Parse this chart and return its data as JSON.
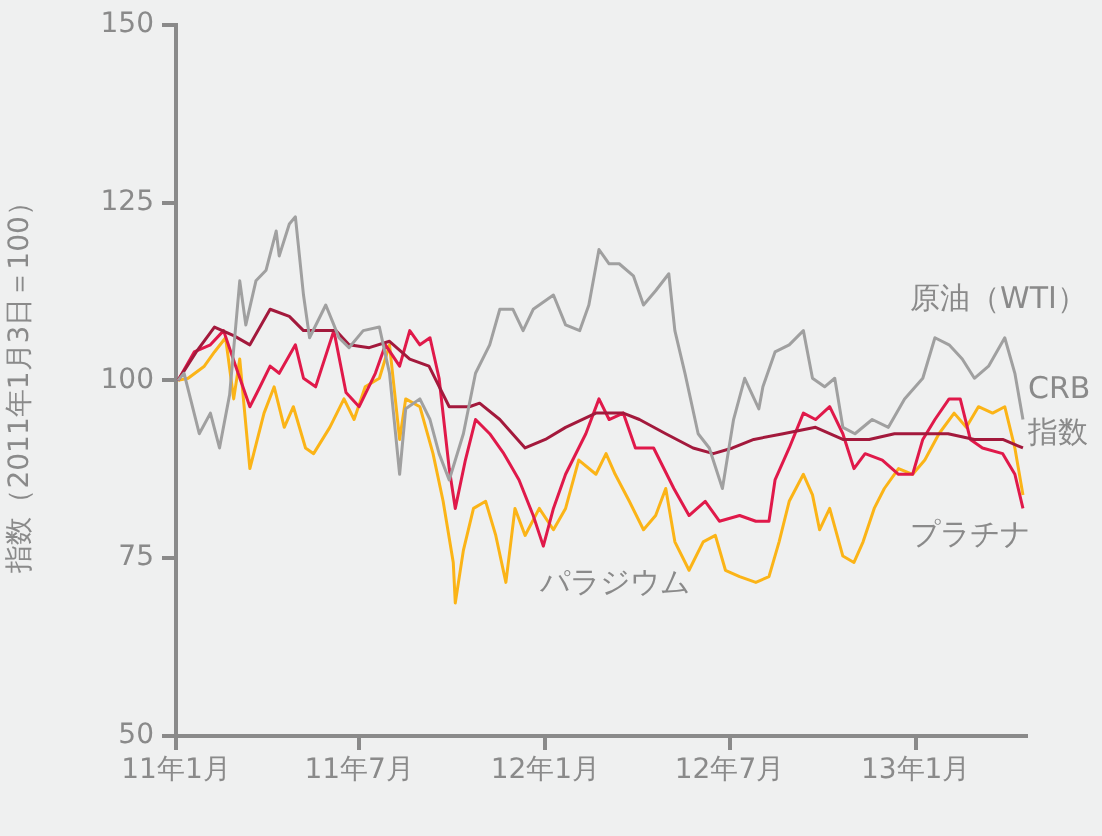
{
  "chart_data": {
    "type": "line",
    "ylabel": "指数（2011年1月3日＝100）",
    "ylim": [
      50,
      150
    ],
    "yticks": [
      50,
      75,
      100,
      125,
      150
    ],
    "xlim": [
      "2011-01-01",
      "2013-04-20"
    ],
    "xticks": [
      {
        "value": "2011-01",
        "label": "11年1月"
      },
      {
        "value": "2011-07",
        "label": "11年7月"
      },
      {
        "value": "2012-01",
        "label": "12年1月"
      },
      {
        "value": "2012-07",
        "label": "12年7月"
      },
      {
        "value": "2013-01",
        "label": "13年1月"
      }
    ],
    "grid": false,
    "legend": false,
    "marker": "none",
    "series": [
      {
        "name": "原油（WTI）",
        "color": "#a0a0a0",
        "x": [
          "2011-01-03",
          "2011-01-09",
          "2011-01-24",
          "2011-02-04",
          "2011-02-13",
          "2011-02-23",
          "2011-03-05",
          "2011-03-11",
          "2011-03-21",
          "2011-03-31",
          "2011-04-10",
          "2011-04-13",
          "2011-04-23",
          "2011-04-29",
          "2011-05-07",
          "2011-05-13",
          "2011-05-29",
          "2011-06-06",
          "2011-06-11",
          "2011-06-21",
          "2011-07-05",
          "2011-07-21",
          "2011-07-31",
          "2011-08-10",
          "2011-08-16",
          "2011-08-30",
          "2011-09-09",
          "2011-09-18",
          "2011-09-28",
          "2011-10-12",
          "2011-10-24",
          "2011-11-07",
          "2011-11-17",
          "2011-11-30",
          "2011-12-10",
          "2011-12-20",
          "2012-01-09",
          "2012-01-21",
          "2012-02-04",
          "2012-02-13",
          "2012-02-23",
          "2012-03-04",
          "2012-03-14",
          "2012-03-28",
          "2012-04-07",
          "2012-04-19",
          "2012-05-02",
          "2012-05-08",
          "2012-05-18",
          "2012-05-31",
          "2012-06-11",
          "2012-06-24",
          "2012-07-05",
          "2012-07-16",
          "2012-07-30",
          "2012-08-03",
          "2012-08-15",
          "2012-08-29",
          "2012-09-12",
          "2012-09-21",
          "2012-10-03",
          "2012-10-13",
          "2012-10-21",
          "2012-11-02",
          "2012-11-19",
          "2012-12-05",
          "2012-12-21",
          "2013-01-08",
          "2013-01-20",
          "2013-02-03",
          "2013-02-16",
          "2013-02-28",
          "2013-03-14",
          "2013-03-30",
          "2013-04-09",
          "2013-04-17"
        ],
        "values": [
          100,
          101,
          92.5,
          95.4,
          90.5,
          98,
          114,
          107.8,
          114,
          115.5,
          121,
          117.5,
          122,
          123,
          112,
          106,
          110.6,
          107.8,
          106,
          104.6,
          107,
          107.5,
          101,
          86.8,
          96,
          97.4,
          94.5,
          89.7,
          86,
          92.5,
          101,
          105,
          110,
          110,
          107,
          110,
          112,
          107.8,
          107,
          110.6,
          118.4,
          116.4,
          116.4,
          114.7,
          110.6,
          112.6,
          115,
          107,
          101,
          92.5,
          90.5,
          84.8,
          94.5,
          100.3,
          96,
          99.1,
          104,
          105,
          107,
          100.3,
          99.1,
          100.3,
          93.4,
          92.5,
          94.5,
          93.4,
          97.4,
          100.3,
          106,
          105,
          103,
          100.3,
          102,
          106,
          101,
          94.5
        ]
      },
      {
        "name": "CRB指数",
        "color": "#a3193c",
        "x": [
          "2011-01-03",
          "2011-01-21",
          "2011-02-08",
          "2011-02-27",
          "2011-03-15",
          "2011-04-04",
          "2011-04-23",
          "2011-05-07",
          "2011-05-27",
          "2011-06-08",
          "2011-06-21",
          "2011-07-11",
          "2011-07-31",
          "2011-08-20",
          "2011-09-08",
          "2011-09-28",
          "2011-10-18",
          "2011-10-28",
          "2011-11-17",
          "2011-12-12",
          "2012-01-01",
          "2012-01-21",
          "2012-02-20",
          "2012-03-18",
          "2012-04-03",
          "2012-04-29",
          "2012-05-26",
          "2012-06-15",
          "2012-07-04",
          "2012-07-25",
          "2012-08-23",
          "2012-09-24",
          "2012-10-21",
          "2012-11-16",
          "2012-12-11",
          "2013-01-08",
          "2013-02-02",
          "2013-02-28",
          "2013-03-28",
          "2013-04-17"
        ],
        "values": [
          100,
          104,
          107.5,
          106.3,
          105,
          110,
          109,
          107,
          107,
          107,
          105,
          104.6,
          105.5,
          103,
          102,
          96.3,
          96.3,
          96.8,
          94.5,
          90.5,
          91.7,
          93.4,
          95.4,
          95.4,
          94.5,
          92.5,
          90.5,
          89.7,
          90.5,
          91.7,
          92.5,
          93.4,
          91.7,
          91.7,
          92.5,
          92.5,
          92.5,
          91.7,
          91.7,
          90.5
        ]
      },
      {
        "name": "プラチナ",
        "color": "#e0194a",
        "x": [
          "2011-01-03",
          "2011-01-19",
          "2011-02-04",
          "2011-02-17",
          "2011-03-01",
          "2011-03-15",
          "2011-03-25",
          "2011-04-04",
          "2011-04-13",
          "2011-04-29",
          "2011-05-07",
          "2011-05-19",
          "2011-06-06",
          "2011-06-18",
          "2011-07-01",
          "2011-07-17",
          "2011-07-27",
          "2011-08-10",
          "2011-08-20",
          "2011-08-30",
          "2011-09-09",
          "2011-09-18",
          "2011-09-28",
          "2011-10-04",
          "2011-10-14",
          "2011-10-24",
          "2011-11-07",
          "2011-11-21",
          "2011-12-06",
          "2011-12-20",
          "2011-12-30",
          "2012-01-09",
          "2012-01-21",
          "2012-02-10",
          "2012-02-23",
          "2012-03-04",
          "2012-03-18",
          "2012-03-30",
          "2012-04-17",
          "2012-05-07",
          "2012-05-22",
          "2012-06-07",
          "2012-06-21",
          "2012-07-11",
          "2012-07-27",
          "2012-08-09",
          "2012-08-15",
          "2012-08-29",
          "2012-09-12",
          "2012-09-24",
          "2012-10-08",
          "2012-10-21",
          "2012-11-01",
          "2012-11-12",
          "2012-11-29",
          "2012-12-15",
          "2012-12-29",
          "2013-01-08",
          "2013-01-20",
          "2013-02-03",
          "2013-02-14",
          "2013-02-24",
          "2013-03-08",
          "2013-03-28",
          "2013-04-09",
          "2013-04-17"
        ],
        "values": [
          100,
          104,
          105,
          107,
          102,
          96.3,
          99.1,
          102,
          101,
          105,
          100.3,
          99.1,
          107,
          98.3,
          96.3,
          101,
          105,
          102,
          107,
          105,
          106,
          100.3,
          87.6,
          82,
          88.8,
          94.5,
          92.5,
          89.7,
          86,
          81,
          76.7,
          82,
          86.8,
          92.5,
          97.4,
          94.5,
          95.4,
          90.5,
          90.5,
          84.8,
          81,
          83,
          80.2,
          81,
          80.2,
          80.2,
          86,
          90.5,
          95.4,
          94.5,
          96.3,
          92.5,
          87.6,
          89.7,
          88.8,
          86.8,
          86.8,
          91.7,
          94.5,
          97.4,
          97.4,
          91.7,
          90.5,
          89.7,
          86.8,
          82
        ]
      },
      {
        "name": "パラジウム",
        "color": "#fbb417",
        "x": [
          "2011-01-03",
          "2011-01-13",
          "2011-01-29",
          "2011-02-08",
          "2011-02-19",
          "2011-02-27",
          "2011-03-05",
          "2011-03-15",
          "2011-03-29",
          "2011-04-08",
          "2011-04-18",
          "2011-04-27",
          "2011-05-09",
          "2011-05-17",
          "2011-06-02",
          "2011-06-16",
          "2011-06-26",
          "2011-07-07",
          "2011-07-21",
          "2011-07-31",
          "2011-08-10",
          "2011-08-16",
          "2011-08-30",
          "2011-09-12",
          "2011-09-22",
          "2011-10-02",
          "2011-10-04",
          "2011-10-12",
          "2011-10-22",
          "2011-11-03",
          "2011-11-13",
          "2011-11-23",
          "2011-12-02",
          "2011-12-12",
          "2011-12-26",
          "2012-01-09",
          "2012-01-21",
          "2012-02-03",
          "2012-02-20",
          "2012-03-01",
          "2012-03-10",
          "2012-03-24",
          "2012-04-07",
          "2012-04-19",
          "2012-04-29",
          "2012-05-08",
          "2012-05-22",
          "2012-06-05",
          "2012-06-17",
          "2012-06-27",
          "2012-07-11",
          "2012-07-27",
          "2012-08-09",
          "2012-08-19",
          "2012-08-29",
          "2012-09-12",
          "2012-09-21",
          "2012-09-28",
          "2012-10-08",
          "2012-10-21",
          "2012-11-01",
          "2012-11-10",
          "2012-11-21",
          "2012-12-01",
          "2012-12-15",
          "2012-12-29",
          "2013-01-10",
          "2013-01-24",
          "2013-02-08",
          "2013-02-20",
          "2013-03-04",
          "2013-03-18",
          "2013-03-30",
          "2013-04-09",
          "2013-04-17"
        ],
        "values": [
          100,
          100.3,
          102,
          104,
          106,
          97.4,
          103,
          87.6,
          95.4,
          99.1,
          93.4,
          96.3,
          90.5,
          89.7,
          93.4,
          97.4,
          94.5,
          99.1,
          100.3,
          105,
          91.7,
          97.4,
          96.3,
          89.7,
          83,
          74.4,
          68.7,
          76.1,
          82,
          83,
          78.2,
          71.6,
          82,
          78.2,
          82,
          79,
          82,
          88.8,
          86.8,
          89.7,
          86.8,
          83,
          79,
          81,
          84.8,
          77.3,
          73.3,
          77.3,
          78.2,
          73.3,
          72.4,
          71.6,
          72.4,
          77.3,
          83,
          86.8,
          83.9,
          79,
          82,
          75.3,
          74.4,
          77.3,
          82,
          84.8,
          87.6,
          86.8,
          88.8,
          92.5,
          95.4,
          93.4,
          96.3,
          95.4,
          96.3,
          90.5,
          83.9
        ]
      }
    ]
  }
}
